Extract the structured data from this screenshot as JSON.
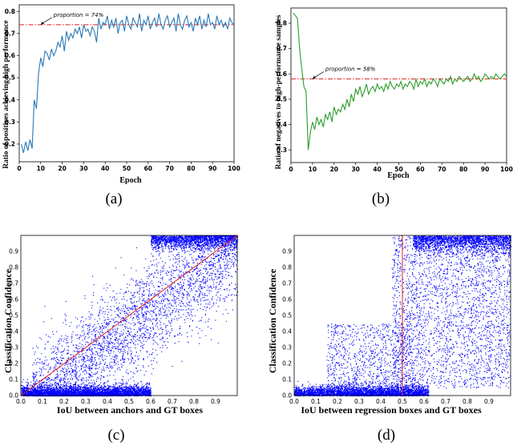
{
  "captions": [
    "(a)",
    "(b)",
    "(c)",
    "(d)"
  ],
  "chart_data": [
    {
      "id": "a",
      "type": "line",
      "xlabel": "Epoch",
      "ylabel": "Ratio of positives achieving high performance",
      "xlim": [
        0,
        100
      ],
      "ylim": [
        0.12,
        0.83
      ],
      "xticks": [
        0,
        10,
        20,
        30,
        40,
        50,
        60,
        70,
        80,
        90,
        100
      ],
      "yticks": [
        0.2,
        0.3,
        0.4,
        0.5,
        0.6,
        0.7,
        0.8
      ],
      "series_color": "#2878b5",
      "reference_color": "#e02020",
      "reference_value": 0.74,
      "annotation": "proportion = 74%",
      "annotation_xy": [
        10,
        0.74
      ],
      "x": [
        1,
        2,
        3,
        4,
        5,
        6,
        7,
        8,
        9,
        10,
        11,
        12,
        13,
        14,
        15,
        16,
        17,
        18,
        19,
        20,
        21,
        22,
        23,
        24,
        25,
        26,
        27,
        28,
        29,
        30,
        31,
        32,
        33,
        34,
        35,
        36,
        37,
        38,
        39,
        40,
        41,
        42,
        43,
        44,
        45,
        46,
        47,
        48,
        49,
        50,
        51,
        52,
        53,
        54,
        55,
        56,
        57,
        58,
        59,
        60,
        61,
        62,
        63,
        64,
        65,
        66,
        67,
        68,
        69,
        70,
        71,
        72,
        73,
        74,
        75,
        76,
        77,
        78,
        79,
        80,
        81,
        82,
        83,
        84,
        85,
        86,
        87,
        88,
        89,
        90,
        91,
        92,
        93,
        94,
        95,
        96,
        97,
        98,
        99,
        100
      ],
      "y": [
        0.2,
        0.16,
        0.21,
        0.17,
        0.22,
        0.18,
        0.4,
        0.36,
        0.52,
        0.59,
        0.55,
        0.62,
        0.61,
        0.58,
        0.63,
        0.6,
        0.62,
        0.66,
        0.64,
        0.69,
        0.62,
        0.71,
        0.67,
        0.7,
        0.68,
        0.72,
        0.7,
        0.73,
        0.68,
        0.74,
        0.71,
        0.72,
        0.69,
        0.73,
        0.71,
        0.66,
        0.77,
        0.72,
        0.75,
        0.74,
        0.78,
        0.72,
        0.76,
        0.73,
        0.77,
        0.7,
        0.75,
        0.76,
        0.71,
        0.78,
        0.74,
        0.72,
        0.77,
        0.75,
        0.73,
        0.79,
        0.71,
        0.76,
        0.74,
        0.78,
        0.72,
        0.75,
        0.77,
        0.73,
        0.79,
        0.74,
        0.72,
        0.76,
        0.78,
        0.73,
        0.75,
        0.77,
        0.71,
        0.79,
        0.74,
        0.72,
        0.76,
        0.78,
        0.73,
        0.75,
        0.71,
        0.77,
        0.74,
        0.78,
        0.72,
        0.76,
        0.73,
        0.79,
        0.74,
        0.75,
        0.72,
        0.78,
        0.74,
        0.76,
        0.73,
        0.75,
        0.72,
        0.77,
        0.75,
        0.74
      ]
    },
    {
      "id": "b",
      "type": "line",
      "xlabel": "Epoch",
      "ylabel": "Ratio of negatives to high-performance samples",
      "xlim": [
        0,
        100
      ],
      "ylim": [
        0.25,
        0.86
      ],
      "xticks": [
        0,
        10,
        20,
        30,
        40,
        50,
        60,
        70,
        80,
        90,
        100
      ],
      "yticks": [
        0.3,
        0.4,
        0.5,
        0.6,
        0.7,
        0.8
      ],
      "series_color": "#2a9d2a",
      "reference_color": "#e02020",
      "reference_value": 0.58,
      "annotation": "proportion = 58%",
      "annotation_xy": [
        10,
        0.58
      ],
      "x": [
        1,
        2,
        3,
        4,
        5,
        6,
        7,
        8,
        9,
        10,
        11,
        12,
        13,
        14,
        15,
        16,
        17,
        18,
        19,
        20,
        21,
        22,
        23,
        24,
        25,
        26,
        27,
        28,
        29,
        30,
        31,
        32,
        33,
        34,
        35,
        36,
        37,
        38,
        39,
        40,
        41,
        42,
        43,
        44,
        45,
        46,
        47,
        48,
        49,
        50,
        51,
        52,
        53,
        54,
        55,
        56,
        57,
        58,
        59,
        60,
        61,
        62,
        63,
        64,
        65,
        66,
        67,
        68,
        69,
        70,
        71,
        72,
        73,
        74,
        75,
        76,
        77,
        78,
        79,
        80,
        81,
        82,
        83,
        84,
        85,
        86,
        87,
        88,
        89,
        90,
        91,
        92,
        93,
        94,
        95,
        96,
        97,
        98,
        99,
        100
      ],
      "y": [
        0.84,
        0.83,
        0.82,
        0.7,
        0.62,
        0.55,
        0.53,
        0.3,
        0.37,
        0.41,
        0.38,
        0.43,
        0.4,
        0.42,
        0.39,
        0.44,
        0.42,
        0.45,
        0.41,
        0.47,
        0.44,
        0.46,
        0.45,
        0.48,
        0.46,
        0.5,
        0.47,
        0.52,
        0.49,
        0.54,
        0.52,
        0.55,
        0.51,
        0.53,
        0.56,
        0.52,
        0.54,
        0.55,
        0.53,
        0.56,
        0.54,
        0.55,
        0.53,
        0.56,
        0.54,
        0.57,
        0.55,
        0.54,
        0.56,
        0.55,
        0.57,
        0.54,
        0.56,
        0.55,
        0.57,
        0.56,
        0.54,
        0.58,
        0.55,
        0.57,
        0.56,
        0.58,
        0.55,
        0.57,
        0.56,
        0.58,
        0.57,
        0.55,
        0.58,
        0.57,
        0.56,
        0.58,
        0.57,
        0.59,
        0.56,
        0.58,
        0.57,
        0.59,
        0.58,
        0.57,
        0.58,
        0.59,
        0.57,
        0.58,
        0.6,
        0.58,
        0.59,
        0.57,
        0.58,
        0.6,
        0.59,
        0.58,
        0.59,
        0.58,
        0.6,
        0.59,
        0.58,
        0.59,
        0.6,
        0.59
      ]
    },
    {
      "id": "c",
      "type": "scatter",
      "xlabel": "IoU between anchors and GT boxes",
      "ylabel": "Classification Confidence",
      "xlim": [
        0,
        1
      ],
      "ylim": [
        0,
        1
      ],
      "xticks": [
        "0.0",
        "0.1",
        "0.2",
        "0.3",
        "0.4",
        "0.5",
        "0.6",
        "0.7",
        "0.8",
        "0.9"
      ],
      "yticks": [
        "0.0",
        "0.1",
        "0.2",
        "0.3",
        "0.4",
        "0.5",
        "0.6",
        "0.7",
        "0.8",
        "0.9"
      ],
      "point_color": "#0000ff",
      "line_color": "#e02020",
      "reference": "diagonal y = x",
      "approx_points": 9000,
      "distribution": "dense band near y=0 for IoU below 0.5; points rise with IoU; dense cluster near y=1 for IoU 0.6-1.0"
    },
    {
      "id": "d",
      "type": "scatter",
      "xlabel": "IoU between regression boxes and GT boxes",
      "ylabel": "Classification Confidence",
      "xlim": [
        0,
        1
      ],
      "ylim": [
        0,
        1
      ],
      "xticks": [
        "0.0",
        "0.1",
        "0.2",
        "0.3",
        "0.4",
        "0.5",
        "0.6",
        "0.7",
        "0.8",
        "0.9"
      ],
      "yticks": [
        "0.0",
        "0.1",
        "0.2",
        "0.3",
        "0.4",
        "0.5",
        "0.6",
        "0.7",
        "0.8",
        "0.9"
      ],
      "point_color": "#0000ff",
      "line_color": "#e02020",
      "reference": "vertical x = 0.5",
      "approx_points": 9000,
      "distribution": "dense band near y=0 below IoU 0.5; wide spread of confidence for IoU 0.5-1.0, densest near y=1"
    }
  ]
}
